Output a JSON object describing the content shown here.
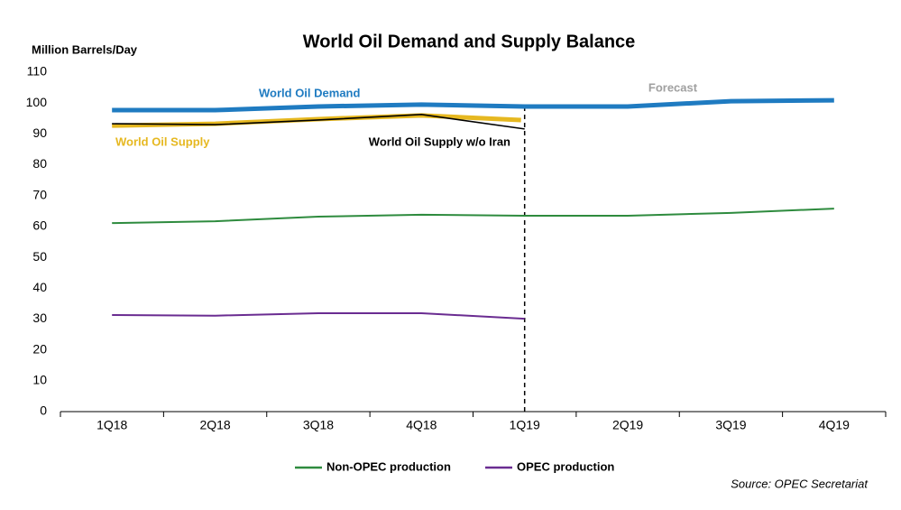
{
  "chart_data": {
    "type": "line",
    "title": "World Oil Demand and Supply Balance",
    "y_label": "Million Barrels/Day",
    "annotation": "Forecast",
    "source": "Source: OPEC Secretariat",
    "categories": [
      "1Q18",
      "2Q18",
      "3Q18",
      "4Q18",
      "1Q19",
      "2Q19",
      "3Q19",
      "4Q19"
    ],
    "series": [
      {
        "name": "World Oil Demand",
        "color": "#1f7bc1",
        "in_legend": false,
        "values": [
          97.7,
          97.7,
          98.9,
          99.5,
          98.9,
          98.9,
          100.6,
          100.9
        ]
      },
      {
        "name": "World Oil Supply",
        "color": "#e6b820",
        "in_legend": false,
        "values": [
          92.7,
          93.3,
          94.8,
          96.0,
          94.5,
          null,
          null,
          null
        ]
      },
      {
        "name": "World Oil Supply w/o Iran",
        "color": "#000000",
        "in_legend": false,
        "values": [
          93.3,
          93.0,
          94.5,
          96.3,
          91.6,
          null,
          null,
          null
        ]
      },
      {
        "name": "Non-OPEC production",
        "color": "#2e8b3e",
        "in_legend": true,
        "values": [
          61.1,
          61.7,
          63.2,
          63.8,
          63.5,
          63.5,
          64.4,
          65.8
        ]
      },
      {
        "name": "OPEC production",
        "color": "#6a2c91",
        "in_legend": true,
        "values": [
          31.3,
          31.1,
          31.9,
          31.9,
          30.1,
          null,
          null,
          null
        ]
      }
    ],
    "ylim": [
      0,
      110
    ],
    "yticks": [
      0,
      10,
      20,
      30,
      40,
      50,
      60,
      70,
      80,
      90,
      100,
      110
    ],
    "grid": false
  }
}
